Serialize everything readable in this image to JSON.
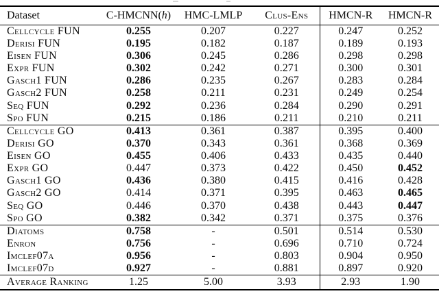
{
  "header": {
    "dataset_label": "Dataset",
    "col2": {
      "prefix": "C-HMCNN(",
      "italic_h": "h",
      "suffix": ")"
    },
    "col3": "HMC-LMLP",
    "col4": "Clus-Ens",
    "col5": "HMCN-R",
    "col6": "HMCN-R"
  },
  "sections": [
    {
      "name": "fun",
      "rows": [
        {
          "dataset": "Cellcycle FUN",
          "values": [
            "0.255",
            "0.207",
            "0.227",
            "0.247",
            "0.252"
          ],
          "bold": [
            0
          ]
        },
        {
          "dataset": "Derisi FUN",
          "values": [
            "0.195",
            "0.182",
            "0.187",
            "0.189",
            "0.193"
          ],
          "bold": [
            0
          ]
        },
        {
          "dataset": "Eisen FUN",
          "values": [
            "0.306",
            "0.245",
            "0.286",
            "0.298",
            "0.298"
          ],
          "bold": [
            0
          ]
        },
        {
          "dataset": "Expr FUN",
          "values": [
            "0.302",
            "0.242",
            "0.271",
            "0.300",
            "0.301"
          ],
          "bold": [
            0
          ]
        },
        {
          "dataset": "Gasch1 FUN",
          "values": [
            "0.286",
            "0.235",
            "0.267",
            "0.283",
            "0.284"
          ],
          "bold": [
            0
          ]
        },
        {
          "dataset": "Gasch2 FUN",
          "values": [
            "0.258",
            "0.211",
            "0.231",
            "0.249",
            "0.254"
          ],
          "bold": [
            0
          ]
        },
        {
          "dataset": "Seq FUN",
          "values": [
            "0.292",
            "0.236",
            "0.284",
            "0.290",
            "0.291"
          ],
          "bold": [
            0
          ]
        },
        {
          "dataset": "Spo FUN",
          "values": [
            "0.215",
            "0.186",
            "0.211",
            "0.210",
            "0.211"
          ],
          "bold": [
            0
          ]
        }
      ]
    },
    {
      "name": "go",
      "rows": [
        {
          "dataset": "Cellcycle GO",
          "values": [
            "0.413",
            "0.361",
            "0.387",
            "0.395",
            "0.400"
          ],
          "bold": [
            0
          ]
        },
        {
          "dataset": "Derisi GO",
          "values": [
            "0.370",
            "0.343",
            "0.361",
            "0.368",
            "0.369"
          ],
          "bold": [
            0
          ]
        },
        {
          "dataset": "Eisen GO",
          "values": [
            "0.455",
            "0.406",
            "0.433",
            "0.435",
            "0.440"
          ],
          "bold": [
            0
          ]
        },
        {
          "dataset": "Expr GO",
          "values": [
            "0.447",
            "0.373",
            "0.422",
            "0.450",
            "0.452"
          ],
          "bold": [
            4
          ]
        },
        {
          "dataset": "Gasch1 GO",
          "values": [
            "0.436",
            "0.380",
            "0.415",
            "0.416",
            "0.428"
          ],
          "bold": [
            0
          ]
        },
        {
          "dataset": "Gasch2 GO",
          "values": [
            "0.414",
            "0.371",
            "0.395",
            "0.463",
            "0.465"
          ],
          "bold": [
            4
          ]
        },
        {
          "dataset": "Seq GO",
          "values": [
            "0.446",
            "0.370",
            "0.438",
            "0.443",
            "0.447"
          ],
          "bold": [
            4
          ]
        },
        {
          "dataset": "Spo GO",
          "values": [
            "0.382",
            "0.342",
            "0.371",
            "0.375",
            "0.376"
          ],
          "bold": [
            0
          ]
        }
      ]
    },
    {
      "name": "other",
      "rows": [
        {
          "dataset": "Diatoms",
          "values": [
            "0.758",
            "-",
            "0.501",
            "0.514",
            "0.530"
          ],
          "bold": [
            0
          ]
        },
        {
          "dataset": "Enron",
          "values": [
            "0.756",
            "-",
            "0.696",
            "0.710",
            "0.724"
          ],
          "bold": [
            0
          ]
        },
        {
          "dataset": "Imclef07a",
          "values": [
            "0.956",
            "-",
            "0.803",
            "0.904",
            "0.950"
          ],
          "bold": [
            0
          ]
        },
        {
          "dataset": "Imclef07d",
          "values": [
            "0.927",
            "-",
            "0.881",
            "0.897",
            "0.920"
          ],
          "bold": [
            0
          ]
        }
      ]
    },
    {
      "name": "average",
      "rows": [
        {
          "dataset": "Average Ranking",
          "values": [
            "1.25",
            "5.00",
            "3.93",
            "2.93",
            "1.90"
          ],
          "bold": []
        }
      ]
    }
  ]
}
